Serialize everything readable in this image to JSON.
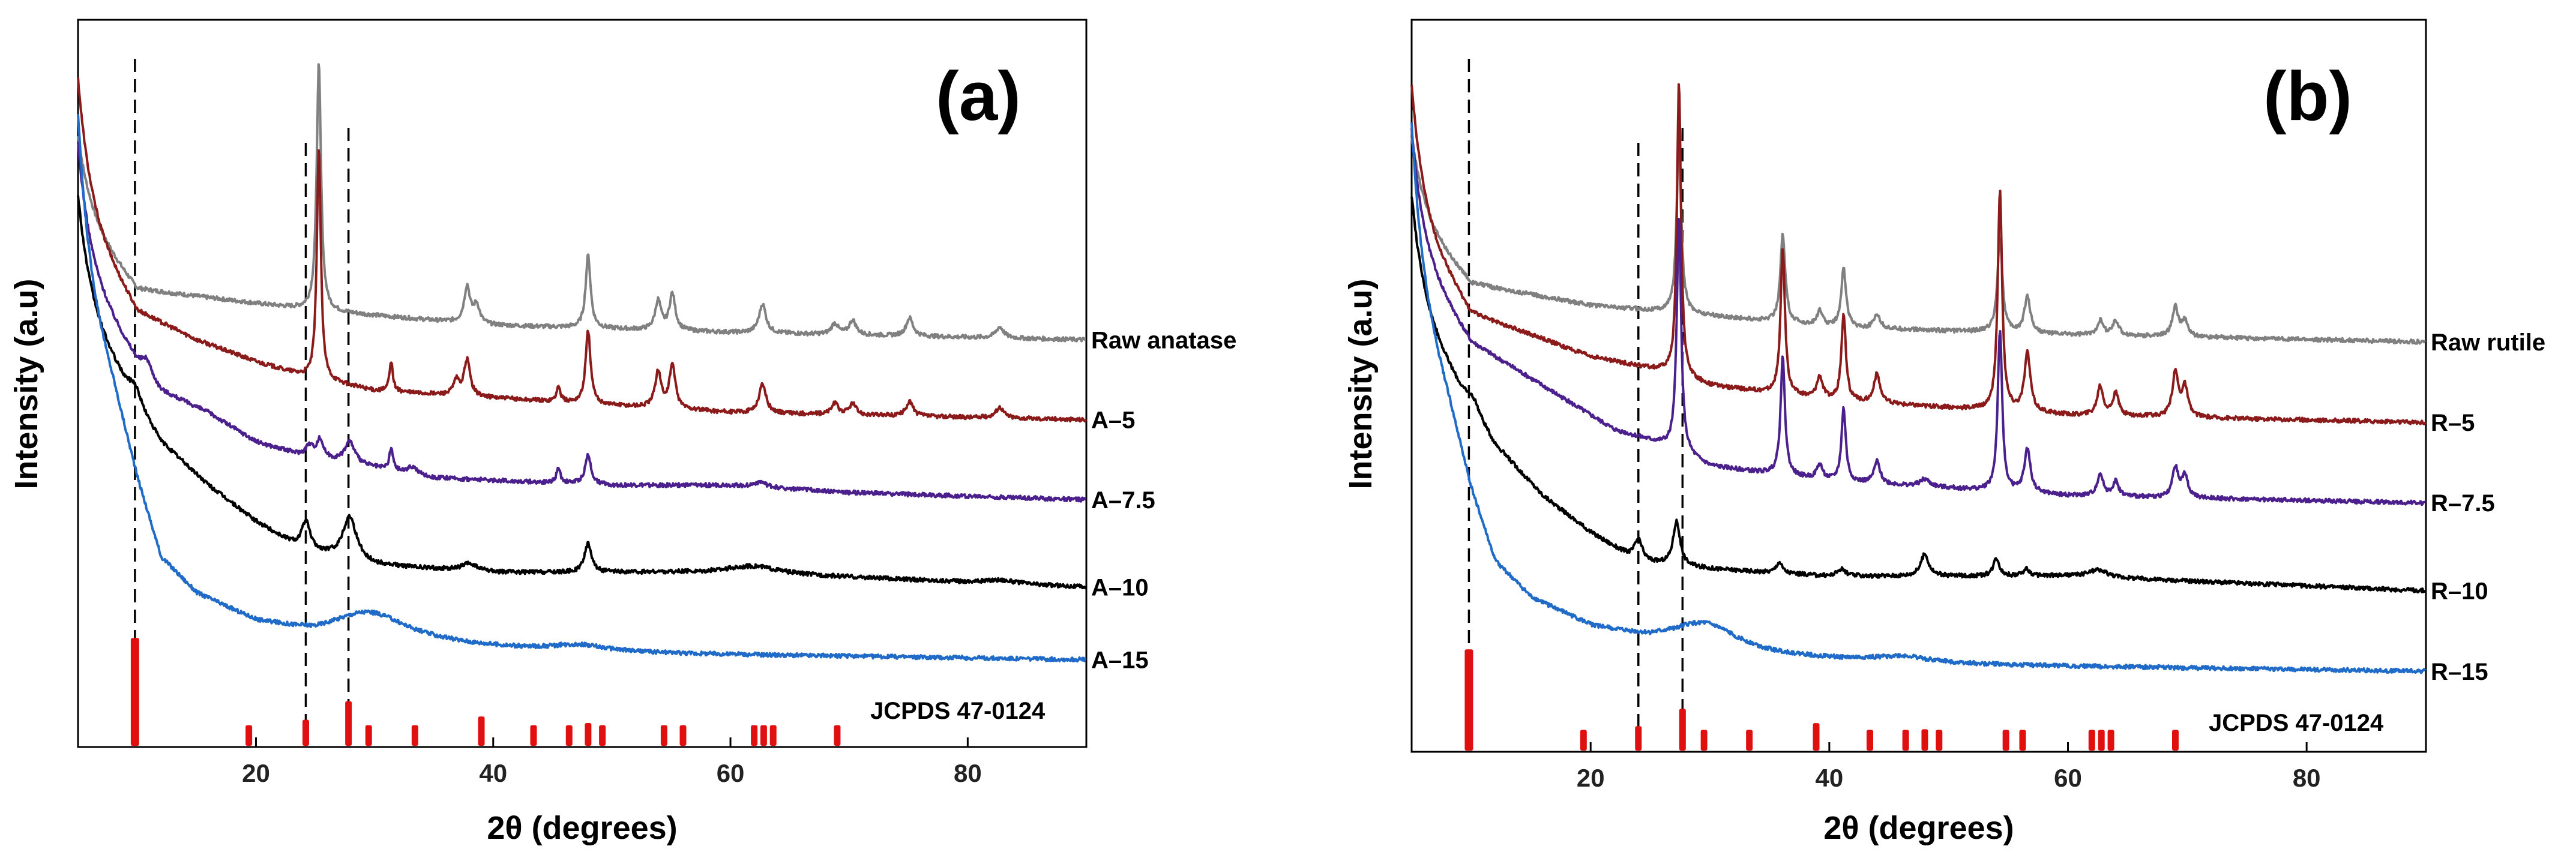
{
  "chart_data": [
    {
      "id": "a",
      "type": "line",
      "panel_label": "(a)",
      "xlabel": "2θ (degrees)",
      "ylabel": "Intensity (a.u)",
      "xlim": [
        5,
        90
      ],
      "xticks": [
        20,
        40,
        60,
        80
      ],
      "ylim": [
        0,
        100
      ],
      "yticks_visible": false,
      "guide_lines_2theta": [
        9.8,
        24.2,
        27.8
      ],
      "series": [
        {
          "name": "Raw anatase",
          "color": "#808080",
          "offset": 56,
          "initial_rise": 11,
          "decay": 3.5,
          "background": [
            [
              5,
              17
            ],
            [
              10,
              7
            ],
            [
              20,
              5
            ],
            [
              25,
              4
            ],
            [
              40,
              2
            ],
            [
              60,
              1
            ],
            [
              90,
              0
            ]
          ],
          "peaks": [
            [
              25.3,
              34,
              0.22
            ],
            [
              37.8,
              5,
              0.3
            ],
            [
              38.6,
              2.5,
              0.3
            ],
            [
              48.0,
              10,
              0.25
            ],
            [
              53.9,
              4,
              0.3
            ],
            [
              55.1,
              5,
              0.3
            ],
            [
              62.7,
              4,
              0.35
            ],
            [
              68.8,
              1.5,
              0.35
            ],
            [
              70.3,
              2,
              0.35
            ],
            [
              75.1,
              2.5,
              0.35
            ],
            [
              82.7,
              1.5,
              0.4
            ]
          ]
        },
        {
          "name": "A–5",
          "color": "#8b1a1a",
          "offset": 45,
          "initial_rise": 18,
          "decay": 3.2,
          "background": [
            [
              5,
              29
            ],
            [
              10,
              15
            ],
            [
              15,
              11
            ],
            [
              20,
              8
            ],
            [
              24,
              6
            ],
            [
              30,
              4
            ],
            [
              40,
              3
            ],
            [
              60,
              1
            ],
            [
              90,
              0
            ]
          ],
          "peaks": [
            [
              25.3,
              32,
              0.2
            ],
            [
              31.4,
              4,
              0.18
            ],
            [
              36.9,
              2,
              0.3
            ],
            [
              37.8,
              5,
              0.3
            ],
            [
              45.5,
              2,
              0.2
            ],
            [
              48.0,
              10,
              0.25
            ],
            [
              53.9,
              5,
              0.3
            ],
            [
              55.1,
              6,
              0.3
            ],
            [
              62.7,
              4,
              0.35
            ],
            [
              68.8,
              1.5,
              0.35
            ],
            [
              70.3,
              1.5,
              0.35
            ],
            [
              75.1,
              2,
              0.35
            ],
            [
              82.7,
              1.5,
              0.4
            ]
          ]
        },
        {
          "name": "A–7.5",
          "color": "#4b1f8c",
          "offset": 34,
          "initial_rise": 16,
          "decay": 3.0,
          "background": [
            [
              5,
              33
            ],
            [
              10,
              19
            ],
            [
              12,
              15
            ],
            [
              16,
              12
            ],
            [
              20,
              8
            ],
            [
              24,
              6
            ],
            [
              28,
              5
            ],
            [
              35,
              3
            ],
            [
              50,
              2
            ],
            [
              60,
              2
            ],
            [
              70,
              1
            ],
            [
              90,
              0
            ]
          ],
          "peaks": [
            [
              10.8,
              2,
              0.5
            ],
            [
              24.5,
              1.5,
              0.4
            ],
            [
              25.4,
              2.5,
              0.35
            ],
            [
              27.9,
              3,
              0.5
            ],
            [
              31.4,
              3,
              0.18
            ],
            [
              33.2,
              1,
              0.5
            ],
            [
              45.5,
              2,
              0.2
            ],
            [
              48.0,
              4,
              0.3
            ],
            [
              62.5,
              0.7,
              0.6
            ]
          ]
        },
        {
          "name": "A–10",
          "color": "#000000",
          "offset": 22,
          "initial_rise": 14,
          "decay": 3.0,
          "background": [
            [
              5,
              40
            ],
            [
              9,
              28
            ],
            [
              12,
              20
            ],
            [
              16,
              14
            ],
            [
              20,
              9
            ],
            [
              24,
              5
            ],
            [
              30,
              3
            ],
            [
              40,
              2
            ],
            [
              60,
              2
            ],
            [
              90,
              0
            ]
          ],
          "peaks": [
            [
              9.8,
              2,
              0.6
            ],
            [
              24.2,
              4,
              0.45
            ],
            [
              27.9,
              6,
              0.7
            ],
            [
              38.0,
              1,
              0.8
            ],
            [
              48.0,
              4,
              0.35
            ],
            [
              62.0,
              1,
              2.5
            ],
            [
              82.7,
              0.5,
              1.5
            ]
          ]
        },
        {
          "name": "A–15",
          "color": "#1f6bc7",
          "offset": 12,
          "initial_rise": 20,
          "decay": 2.5,
          "background": [
            [
              5,
              55
            ],
            [
              8,
              38
            ],
            [
              10,
              25
            ],
            [
              12,
              14
            ],
            [
              15,
              9
            ],
            [
              20,
              5
            ],
            [
              25,
              3
            ],
            [
              35,
              2
            ],
            [
              45,
              1
            ],
            [
              90,
              0
            ]
          ],
          "peaks": [
            [
              29.5,
              4,
              4.0
            ],
            [
              47.0,
              1,
              3.0
            ]
          ]
        }
      ],
      "reference": {
        "label": "JCPDS 47-0124",
        "color": "#e01010",
        "max_height_units": 15,
        "lines": [
          [
            9.8,
            100
          ],
          [
            19.4,
            8
          ],
          [
            24.2,
            25
          ],
          [
            27.8,
            42
          ],
          [
            29.5,
            3
          ],
          [
            33.4,
            20
          ],
          [
            39.0,
            28
          ],
          [
            43.4,
            3
          ],
          [
            46.4,
            12
          ],
          [
            48.0,
            22
          ],
          [
            49.2,
            18
          ],
          [
            54.4,
            6
          ],
          [
            56.0,
            6
          ],
          [
            62.0,
            8
          ],
          [
            62.8,
            8
          ],
          [
            63.6,
            7
          ],
          [
            69.0,
            7
          ]
        ]
      }
    },
    {
      "id": "b",
      "type": "line",
      "panel_label": "(b)",
      "xlabel": "2θ (degrees)",
      "ylabel": "Intensity (a.u)",
      "xlim": [
        5,
        90
      ],
      "xticks": [
        20,
        40,
        60,
        80
      ],
      "ylim": [
        0,
        100
      ],
      "yticks_visible": false,
      "guide_lines_2theta": [
        9.8,
        24.0,
        27.7
      ],
      "series": [
        {
          "name": "Raw rutile",
          "color": "#808080",
          "offset": 55,
          "initial_rise": 11,
          "decay": 3.5,
          "background": [
            [
              5,
              18
            ],
            [
              10,
              9
            ],
            [
              20,
              6
            ],
            [
              27,
              5
            ],
            [
              40,
              3
            ],
            [
              60,
              2
            ],
            [
              90,
              1
            ]
          ],
          "peaks": [
            [
              27.4,
              25,
              0.22
            ],
            [
              36.1,
              12,
              0.25
            ],
            [
              39.2,
              2,
              0.3
            ],
            [
              41.2,
              8,
              0.25
            ],
            [
              44.0,
              2,
              0.3
            ],
            [
              54.3,
              13,
              0.25
            ],
            [
              56.6,
              5,
              0.3
            ],
            [
              62.7,
              2,
              0.3
            ],
            [
              64.0,
              2,
              0.3
            ],
            [
              69.0,
              4,
              0.3
            ],
            [
              69.8,
              2,
              0.3
            ]
          ]
        },
        {
          "name": "R–5",
          "color": "#8b1a1a",
          "offset": 45,
          "initial_rise": 18,
          "decay": 3.2,
          "background": [
            [
              5,
              28
            ],
            [
              10,
              15
            ],
            [
              15,
              12
            ],
            [
              20,
              9
            ],
            [
              26,
              7
            ],
            [
              30,
              5
            ],
            [
              40,
              3
            ],
            [
              60,
              1
            ],
            [
              90,
              0
            ]
          ],
          "peaks": [
            [
              27.4,
              40,
              0.2
            ],
            [
              36.1,
              20,
              0.22
            ],
            [
              39.2,
              3,
              0.3
            ],
            [
              41.2,
              12,
              0.22
            ],
            [
              44.0,
              4,
              0.3
            ],
            [
              54.3,
              30,
              0.22
            ],
            [
              56.6,
              8,
              0.3
            ],
            [
              62.7,
              4,
              0.3
            ],
            [
              64.0,
              3,
              0.3
            ],
            [
              69.0,
              6,
              0.3
            ],
            [
              69.8,
              4,
              0.3
            ]
          ]
        },
        {
          "name": "R–7.5",
          "color": "#4b1f8c",
          "offset": 34,
          "initial_rise": 16,
          "decay": 3.0,
          "background": [
            [
              5,
              35
            ],
            [
              10,
              22
            ],
            [
              14,
              18
            ],
            [
              18,
              14
            ],
            [
              22,
              10
            ],
            [
              26,
              8
            ],
            [
              30,
              5
            ],
            [
              40,
              3
            ],
            [
              60,
              1
            ],
            [
              90,
              0
            ]
          ],
          "peaks": [
            [
              27.4,
              32,
              0.22
            ],
            [
              36.1,
              16,
              0.22
            ],
            [
              39.2,
              2,
              0.3
            ],
            [
              41.2,
              10,
              0.22
            ],
            [
              44.0,
              3,
              0.3
            ],
            [
              48.0,
              1,
              0.5
            ],
            [
              54.3,
              22,
              0.22
            ],
            [
              56.6,
              6,
              0.3
            ],
            [
              62.7,
              3,
              0.3
            ],
            [
              64.0,
              2,
              0.3
            ],
            [
              69.0,
              4,
              0.3
            ],
            [
              69.8,
              3,
              0.3
            ]
          ]
        },
        {
          "name": "R–10",
          "color": "#000000",
          "offset": 22,
          "initial_rise": 14,
          "decay": 3.0,
          "background": [
            [
              5,
              40
            ],
            [
              9,
              28
            ],
            [
              12,
              20
            ],
            [
              16,
              13
            ],
            [
              20,
              8
            ],
            [
              24,
              4
            ],
            [
              30,
              3
            ],
            [
              40,
              2
            ],
            [
              60,
              2
            ],
            [
              90,
              0
            ]
          ],
          "peaks": [
            [
              10.2,
              1.5,
              0.6
            ],
            [
              24.0,
              3,
              0.4
            ],
            [
              27.2,
              6,
              0.35
            ],
            [
              35.8,
              1.5,
              0.3
            ],
            [
              41.0,
              1,
              0.4
            ],
            [
              48.0,
              3,
              0.4
            ],
            [
              54.0,
              2.5,
              0.3
            ],
            [
              56.5,
              1,
              0.3
            ],
            [
              62.5,
              1,
              1.0
            ]
          ]
        },
        {
          "name": "R–15",
          "color": "#1f6bc7",
          "offset": 11,
          "initial_rise": 20,
          "decay": 2.5,
          "background": [
            [
              5,
              55
            ],
            [
              8,
              38
            ],
            [
              10,
              25
            ],
            [
              12,
              15
            ],
            [
              15,
              10
            ],
            [
              20,
              6
            ],
            [
              25,
              4
            ],
            [
              35,
              2
            ],
            [
              45,
              1
            ],
            [
              90,
              0
            ]
          ],
          "peaks": [
            [
              29.5,
              3.5,
              3.5
            ],
            [
              46.0,
              1,
              3.0
            ]
          ]
        }
      ],
      "reference": {
        "label": "JCPDS 47-0124",
        "color": "#e01010",
        "max_height_units": 14,
        "lines": [
          [
            9.8,
            100
          ],
          [
            19.4,
            8
          ],
          [
            24.0,
            25
          ],
          [
            27.7,
            42
          ],
          [
            29.5,
            3
          ],
          [
            33.3,
            20
          ],
          [
            38.9,
            28
          ],
          [
            43.4,
            3
          ],
          [
            46.4,
            12
          ],
          [
            48.0,
            22
          ],
          [
            49.2,
            18
          ],
          [
            54.8,
            6
          ],
          [
            56.2,
            6
          ],
          [
            62.0,
            8
          ],
          [
            62.8,
            8
          ],
          [
            63.6,
            7
          ],
          [
            69.0,
            7
          ]
        ]
      }
    }
  ]
}
